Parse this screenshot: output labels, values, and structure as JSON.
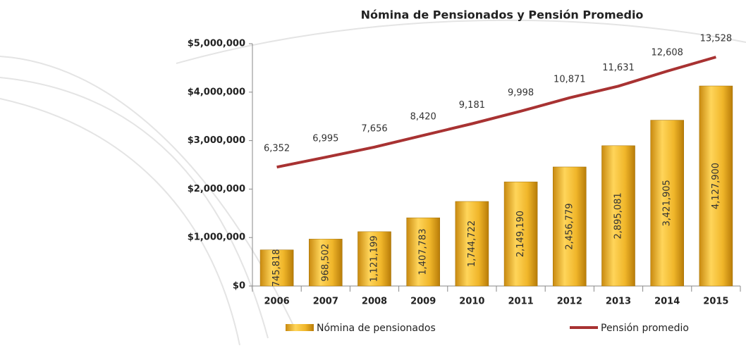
{
  "chart_data": {
    "type": "bar-line",
    "title": "Nómina de Pensionados  y Pensión Promedio",
    "categories": [
      "2006",
      "2007",
      "2008",
      "2009",
      "2010",
      "2011",
      "2012",
      "2013",
      "2014",
      "2015"
    ],
    "series": [
      {
        "name": "Nómina de pensionados",
        "color": "#f0b62a",
        "values": [
          745818,
          968502,
          1121199,
          1407783,
          1744722,
          2149190,
          2456779,
          2895081,
          3421905,
          4127900
        ],
        "value_labels": [
          "745,818",
          "968,502",
          "1,121,199",
          "1,407,783",
          "1,744,722",
          "2,149,190",
          "2,456,779",
          "2,895,081",
          "3,421,905",
          "4,127,900"
        ]
      },
      {
        "name": "Pensión promedio",
        "color": "#a83232",
        "axis": "y2",
        "values": [
          6352,
          6995,
          7656,
          8420,
          9181,
          9998,
          10871,
          11631,
          12608,
          13528
        ],
        "value_labels": [
          "6,352",
          "6,995",
          "7,656",
          "8,420",
          "9,181",
          "9,998",
          "10,871",
          "11,631",
          "12,608",
          "13,528"
        ]
      }
    ],
    "ylim": [
      0,
      5000000
    ],
    "yticks": [
      {
        "value": 0,
        "label": "$0"
      },
      {
        "value": 1000000,
        "label": "$1,000,000"
      },
      {
        "value": 2000000,
        "label": "$2,000,000"
      },
      {
        "value": 3000000,
        "label": "$3,000,000"
      },
      {
        "value": 4000000,
        "label": "$4,000,000"
      },
      {
        "value": 5000000,
        "label": "$5,000,000"
      }
    ],
    "y2lim": [
      -1400,
      14400
    ]
  }
}
